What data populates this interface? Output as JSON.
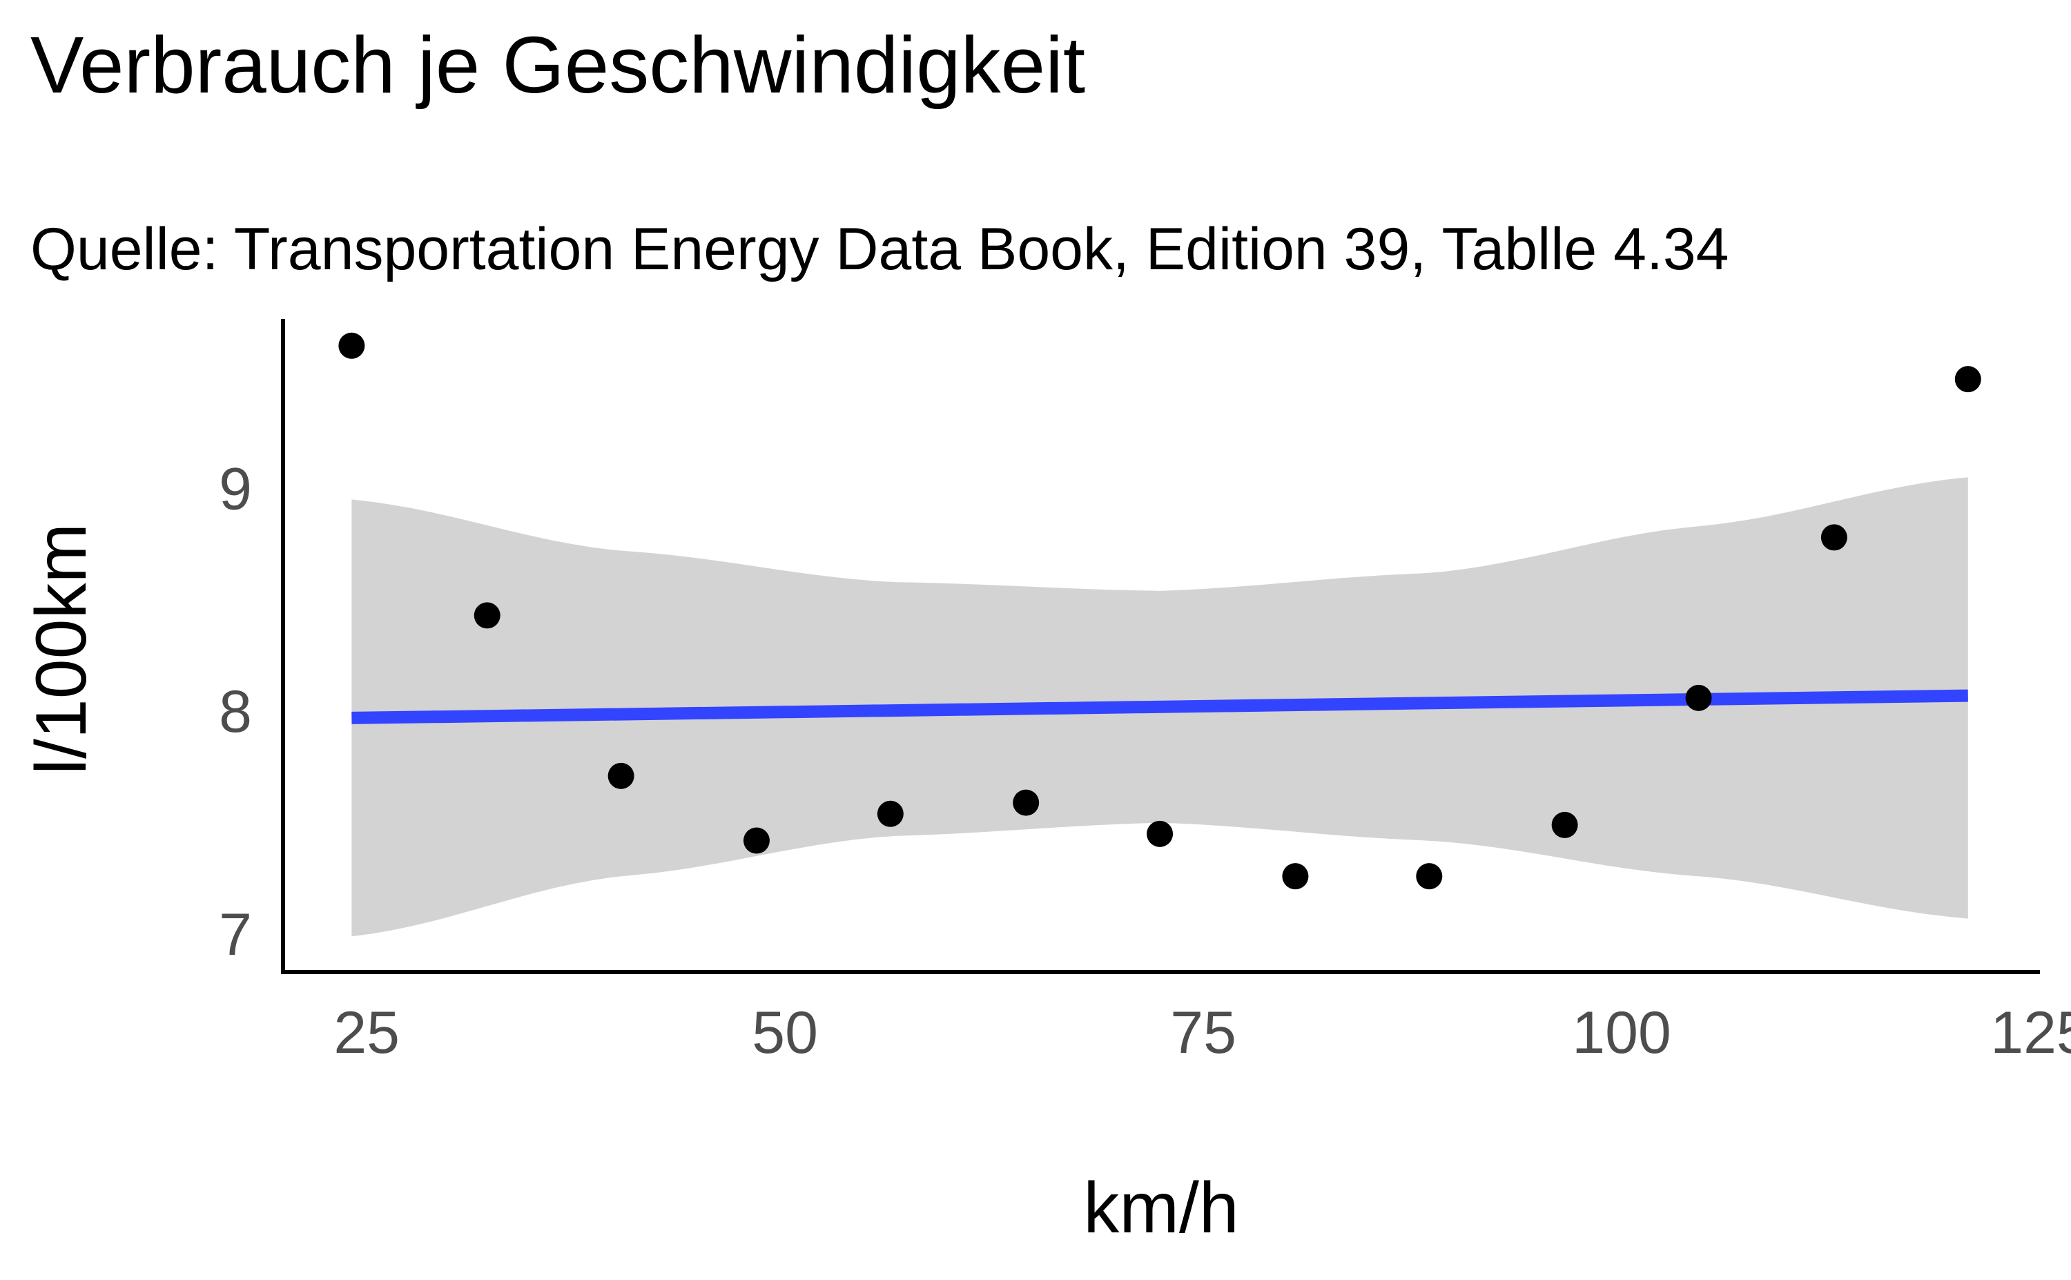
{
  "chart_data": {
    "type": "scatter",
    "title": "Verbrauch je Geschwindigkeit",
    "subtitle": "Quelle: Transportation Energy Data Book, Edition 39, Tablle 4.34",
    "xlabel": "km/h",
    "ylabel": "l/100km",
    "xlim": [
      20,
      125
    ],
    "ylim": [
      6.83,
      9.76
    ],
    "x_ticks": [
      25,
      50,
      75,
      100,
      125
    ],
    "y_ticks": [
      7,
      8,
      9
    ],
    "x_tick_labels": [
      "25",
      "50",
      "75",
      "100",
      "125"
    ],
    "y_tick_labels": [
      "7",
      "8",
      "9"
    ],
    "grid": false,
    "points": {
      "x": [
        24.1,
        32.2,
        40.2,
        48.3,
        56.3,
        64.4,
        72.4,
        80.5,
        88.5,
        96.6,
        104.6,
        112.7,
        120.7
      ],
      "y": [
        9.64,
        8.43,
        7.71,
        7.42,
        7.54,
        7.59,
        7.45,
        7.26,
        7.26,
        7.49,
        8.06,
        8.78,
        9.49
      ]
    },
    "trend_line": {
      "method": "linear",
      "x": [
        24.1,
        120.7
      ],
      "y": [
        7.97,
        8.07
      ]
    },
    "confidence_band": {
      "x": [
        24.1,
        40.2,
        56.3,
        72.4,
        88.5,
        104.6,
        120.7
      ],
      "lower": [
        6.99,
        7.26,
        7.44,
        7.5,
        7.42,
        7.26,
        7.07
      ],
      "upper": [
        8.95,
        8.72,
        8.58,
        8.54,
        8.62,
        8.83,
        9.05
      ]
    },
    "colors": {
      "points": "#000000",
      "trend_line": "#3344ff",
      "confidence_band": "#d3d3d3",
      "axis": "#000000",
      "tick_labels": "#4d4d4d"
    }
  }
}
